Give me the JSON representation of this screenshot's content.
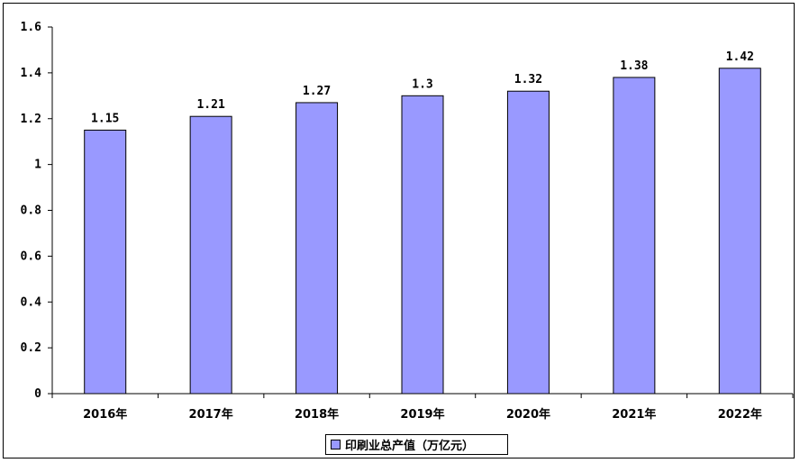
{
  "chart_data": {
    "type": "bar",
    "categories": [
      "2016年",
      "2017年",
      "2018年",
      "2019年",
      "2020年",
      "2021年",
      "2022年"
    ],
    "series": [
      {
        "name": "印刷业总产值（万亿元）",
        "values": [
          1.15,
          1.21,
          1.27,
          1.3,
          1.32,
          1.38,
          1.42
        ]
      }
    ],
    "data_labels": [
      "1.15",
      "1.21",
      "1.27",
      "1.3",
      "1.32",
      "1.38",
      "1.42"
    ],
    "ylim": [
      0,
      1.6
    ],
    "yticks": [
      0,
      0.2,
      0.4,
      0.6,
      0.8,
      1,
      1.2,
      1.4,
      1.6
    ],
    "ytick_labels": [
      "0",
      "0.2",
      "0.4",
      "0.6",
      "0.8",
      "1",
      "1.2",
      "1.4",
      "1.6"
    ],
    "title": "",
    "xlabel": "",
    "ylabel": "",
    "grid": false,
    "legend_position": "bottom",
    "colors": {
      "bar": "#9999ff",
      "border": "#000000"
    }
  }
}
